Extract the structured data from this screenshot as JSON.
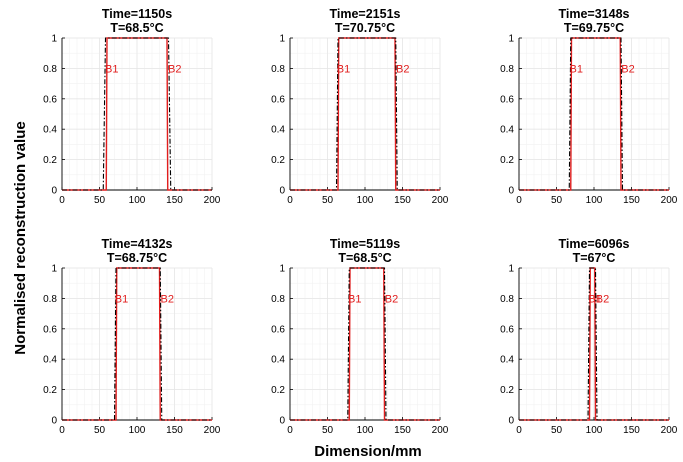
{
  "figure": {
    "ylabel": "Normalised reconstruction value",
    "xlabel": "Dimension/mm",
    "colors": {
      "reconstruction": "#e11d1d",
      "reference": "#000000",
      "grid": "#e6e6e6"
    }
  },
  "chart_data": [
    {
      "type": "line",
      "title": [
        "Time=1150s",
        "T=68.5°C"
      ],
      "xlim": [
        0,
        200
      ],
      "ylim": [
        0,
        1
      ],
      "xticks": [
        "0",
        "50",
        "100",
        "150",
        "200"
      ],
      "yticks": [
        "0",
        "0.2",
        "0.4",
        "0.6",
        "0.8",
        "1"
      ],
      "grid": true,
      "series": [
        {
          "style": "solid-red",
          "x": [
            0,
            59,
            60,
            140,
            141,
            200
          ],
          "y": [
            0,
            0,
            1,
            1,
            0,
            0
          ]
        },
        {
          "style": "dashdot-black",
          "x": [
            0,
            55,
            58,
            142,
            145,
            200
          ],
          "y": [
            0,
            0,
            1,
            1,
            0,
            0
          ]
        }
      ],
      "boundaries": [
        {
          "label": "B1",
          "x": 60,
          "y": 0.8
        },
        {
          "label": "B2",
          "x": 140,
          "y": 0.8
        }
      ]
    },
    {
      "type": "line",
      "title": [
        "Time=2151s",
        "T=70.75°C"
      ],
      "xlim": [
        0,
        200
      ],
      "ylim": [
        0,
        1
      ],
      "xticks": [
        "0",
        "50",
        "100",
        "150",
        "200"
      ],
      "yticks": [
        "0",
        "0.2",
        "0.4",
        "0.6",
        "0.8",
        "1"
      ],
      "grid": true,
      "series": [
        {
          "style": "solid-red",
          "x": [
            0,
            64,
            65,
            140,
            141,
            200
          ],
          "y": [
            0,
            0,
            1,
            1,
            0,
            0
          ]
        },
        {
          "style": "dashdot-black",
          "x": [
            0,
            62,
            64,
            141,
            143,
            200
          ],
          "y": [
            0,
            0,
            1,
            1,
            0,
            0
          ]
        }
      ],
      "boundaries": [
        {
          "label": "B1",
          "x": 65,
          "y": 0.8
        },
        {
          "label": "B2",
          "x": 140,
          "y": 0.8
        }
      ]
    },
    {
      "type": "line",
      "title": [
        "Time=3148s",
        "T=69.75°C"
      ],
      "xlim": [
        0,
        200
      ],
      "ylim": [
        0,
        1
      ],
      "xticks": [
        "0",
        "50",
        "100",
        "150",
        "200"
      ],
      "yticks": [
        "0",
        "0.2",
        "0.4",
        "0.6",
        "0.8",
        "1"
      ],
      "grid": true,
      "series": [
        {
          "style": "solid-red",
          "x": [
            0,
            69,
            70,
            135,
            136,
            200
          ],
          "y": [
            0,
            0,
            1,
            1,
            0,
            0
          ]
        },
        {
          "style": "dashdot-black",
          "x": [
            0,
            67,
            69,
            136,
            138,
            200
          ],
          "y": [
            0,
            0,
            1,
            1,
            0,
            0
          ]
        }
      ],
      "boundaries": [
        {
          "label": "B1",
          "x": 70,
          "y": 0.8
        },
        {
          "label": "B2",
          "x": 135,
          "y": 0.8
        }
      ]
    },
    {
      "type": "line",
      "title": [
        "Time=4132s",
        "T=68.75°C"
      ],
      "xlim": [
        0,
        200
      ],
      "ylim": [
        0,
        1
      ],
      "xticks": [
        "0",
        "50",
        "100",
        "150",
        "200"
      ],
      "yticks": [
        "0",
        "0.2",
        "0.4",
        "0.6",
        "0.8",
        "1"
      ],
      "grid": true,
      "series": [
        {
          "style": "solid-red",
          "x": [
            0,
            72,
            73,
            130,
            131,
            200
          ],
          "y": [
            0,
            0,
            1,
            1,
            0,
            0
          ]
        },
        {
          "style": "dashdot-black",
          "x": [
            0,
            70,
            72,
            131,
            133,
            200
          ],
          "y": [
            0,
            0,
            1,
            1,
            0,
            0
          ]
        }
      ],
      "boundaries": [
        {
          "label": "B1",
          "x": 73,
          "y": 0.8
        },
        {
          "label": "B2",
          "x": 130,
          "y": 0.8
        }
      ]
    },
    {
      "type": "line",
      "title": [
        "Time=5119s",
        "T=68.5°C"
      ],
      "xlim": [
        0,
        200
      ],
      "ylim": [
        0,
        1
      ],
      "xticks": [
        "0",
        "50",
        "100",
        "150",
        "200"
      ],
      "yticks": [
        "0",
        "0.2",
        "0.4",
        "0.6",
        "0.8",
        "1"
      ],
      "grid": true,
      "series": [
        {
          "style": "solid-red",
          "x": [
            0,
            79,
            80,
            125,
            126,
            200
          ],
          "y": [
            0,
            0,
            1,
            1,
            0,
            0
          ]
        },
        {
          "style": "dashdot-black",
          "x": [
            0,
            77,
            79,
            126,
            128,
            200
          ],
          "y": [
            0,
            0,
            1,
            1,
            0,
            0
          ]
        }
      ],
      "boundaries": [
        {
          "label": "B1",
          "x": 80,
          "y": 0.8
        },
        {
          "label": "B2",
          "x": 125,
          "y": 0.8
        }
      ]
    },
    {
      "type": "line",
      "title": [
        "Time=6096s",
        "T=67°C"
      ],
      "xlim": [
        0,
        200
      ],
      "ylim": [
        0,
        1
      ],
      "xticks": [
        "0",
        "50",
        "100",
        "150",
        "200"
      ],
      "yticks": [
        "0",
        "0.2",
        "0.4",
        "0.6",
        "0.8",
        "1"
      ],
      "grid": true,
      "series": [
        {
          "style": "solid-red",
          "x": [
            0,
            94,
            95,
            101,
            102,
            200
          ],
          "y": [
            0,
            0,
            1,
            1,
            0,
            0
          ]
        },
        {
          "style": "dashdot-black",
          "x": [
            0,
            92,
            94,
            102,
            104,
            200
          ],
          "y": [
            0,
            0,
            1,
            1,
            0,
            0
          ]
        }
      ],
      "boundaries": [
        {
          "label": "B1",
          "x": 95,
          "y": 0.8
        },
        {
          "label": "B2",
          "x": 101,
          "y": 0.8
        }
      ]
    }
  ]
}
